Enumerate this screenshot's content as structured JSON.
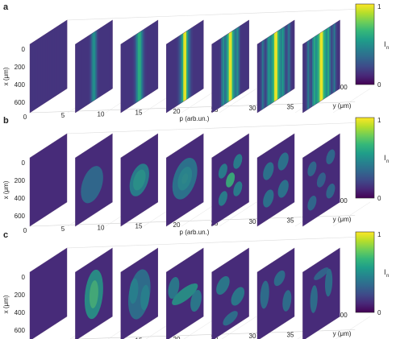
{
  "colormap": [
    "#440154",
    "#482878",
    "#3e4a89",
    "#31688e",
    "#26828e",
    "#1f9e89",
    "#35b779",
    "#6ece58",
    "#b5de2b",
    "#fde725"
  ],
  "panels": [
    {
      "label": "a",
      "pattern": "stripes"
    },
    {
      "label": "b",
      "pattern": "spots"
    },
    {
      "label": "c",
      "pattern": "blobs"
    }
  ],
  "chart_data": [
    {
      "type": "heatmap",
      "panel": "a",
      "xlabel": "p (arb.un.)",
      "ylabel": "x (μm)",
      "zlabel": "y (μm)",
      "p_ticks": [
        "0",
        "5",
        "10",
        "15",
        "20",
        "25",
        "30",
        "35"
      ],
      "x_ticks": [
        "0",
        "200",
        "400",
        "600"
      ],
      "y_ticks": [
        "0",
        "500"
      ],
      "slices_p": [
        0,
        6,
        12,
        18,
        24,
        30,
        36
      ],
      "colorbar": {
        "label": "I",
        "label_sub": "n",
        "min_label": "0",
        "max_label": "1",
        "range": [
          0,
          1
        ]
      },
      "grid": true
    },
    {
      "type": "heatmap",
      "panel": "b",
      "xlabel": "p (arb.un.)",
      "ylabel": "x (μm)",
      "zlabel": "y (μm)",
      "p_ticks": [
        "0",
        "5",
        "10",
        "15",
        "20",
        "25",
        "30",
        "35"
      ],
      "x_ticks": [
        "0",
        "200",
        "400",
        "600"
      ],
      "y_ticks": [
        "0",
        "500"
      ],
      "slices_p": [
        0,
        6,
        12,
        18,
        24,
        30,
        36
      ],
      "colorbar": {
        "label": "I",
        "label_sub": "n",
        "min_label": "0",
        "max_label": "1",
        "range": [
          0,
          1
        ]
      },
      "grid": true
    },
    {
      "type": "heatmap",
      "panel": "c",
      "xlabel": "p (arb.un.)",
      "ylabel": "x (μm)",
      "zlabel": "y (μm)",
      "p_ticks": [
        "0",
        "5",
        "10",
        "15",
        "20",
        "25",
        "30",
        "35"
      ],
      "x_ticks": [
        "0",
        "200",
        "400",
        "600"
      ],
      "y_ticks": [
        "0",
        "500"
      ],
      "slices_p": [
        0,
        6,
        12,
        18,
        24,
        30,
        36
      ],
      "colorbar": {
        "label": "I",
        "label_sub": "n",
        "min_label": "0",
        "max_label": "1",
        "range": [
          0,
          1
        ]
      },
      "grid": true
    }
  ]
}
